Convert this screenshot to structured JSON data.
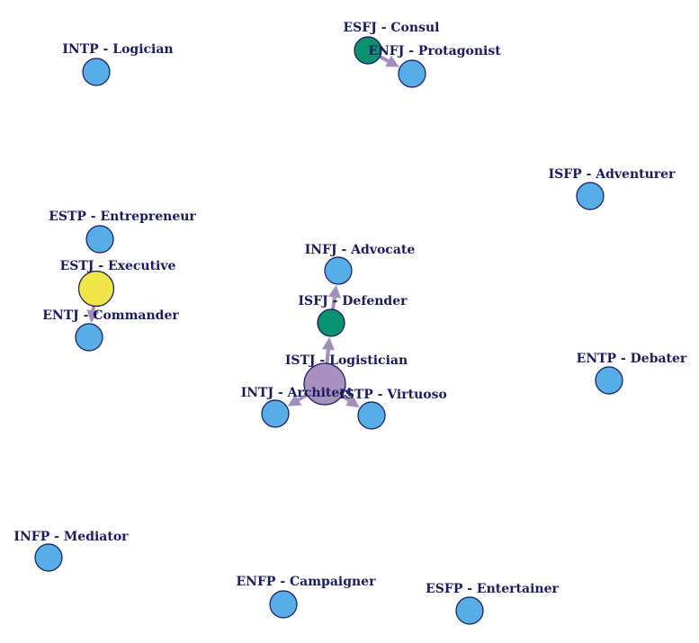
{
  "colors": {
    "default_node": "#57aee6",
    "highlight_green": "#0a9270",
    "highlight_yellow": "#efe64a",
    "hub": "#a890bf",
    "edge": "#a48dba",
    "label": "#1a1a5e",
    "node_stroke": "#14145a"
  },
  "nodes": [
    {
      "id": "INTP",
      "label": "INTP - Logician",
      "color": "#57aee6",
      "size": "normal"
    },
    {
      "id": "ESFJ",
      "label": "ESFJ - Consul",
      "color": "#0a9270",
      "size": "normal"
    },
    {
      "id": "ENFJ",
      "label": "ENFJ - Protagonist",
      "color": "#57aee6",
      "size": "normal"
    },
    {
      "id": "ISFP",
      "label": "ISFP - Adventurer",
      "color": "#57aee6",
      "size": "normal"
    },
    {
      "id": "ESTP",
      "label": "ESTP - Entrepreneur",
      "color": "#57aee6",
      "size": "normal"
    },
    {
      "id": "ESTJ",
      "label": "ESTJ - Executive",
      "color": "#efe64a",
      "size": "large"
    },
    {
      "id": "ENTJ",
      "label": "ENTJ - Commander",
      "color": "#57aee6",
      "size": "normal"
    },
    {
      "id": "INFJ",
      "label": "INFJ - Advocate",
      "color": "#57aee6",
      "size": "normal"
    },
    {
      "id": "ISFJ",
      "label": "ISFJ - Defender",
      "color": "#0a9270",
      "size": "normal"
    },
    {
      "id": "ISTJ",
      "label": "ISTJ - Logistician",
      "color": "#a890bf",
      "size": "xlarge"
    },
    {
      "id": "ENTP",
      "label": "ENTP - Debater",
      "color": "#57aee6",
      "size": "normal"
    },
    {
      "id": "INTJ",
      "label": "INTJ - Architect",
      "color": "#57aee6",
      "size": "normal"
    },
    {
      "id": "ISTP",
      "label": "ISTP - Virtuoso",
      "color": "#57aee6",
      "size": "normal"
    },
    {
      "id": "INFP",
      "label": "INFP - Mediator",
      "color": "#57aee6",
      "size": "normal"
    },
    {
      "id": "ENFP",
      "label": "ENFP - Campaigner",
      "color": "#57aee6",
      "size": "normal"
    },
    {
      "id": "ESFP",
      "label": "ESFP - Entertainer",
      "color": "#57aee6",
      "size": "normal"
    }
  ],
  "edges": [
    {
      "from": "ESFJ",
      "to": "ENFJ"
    },
    {
      "from": "ESTJ",
      "to": "ENTJ"
    },
    {
      "from": "ISFJ",
      "to": "INFJ"
    },
    {
      "from": "ISTJ",
      "to": "ISFJ"
    },
    {
      "from": "ISTJ",
      "to": "INTJ"
    },
    {
      "from": "ISTJ",
      "to": "ISTP"
    }
  ]
}
